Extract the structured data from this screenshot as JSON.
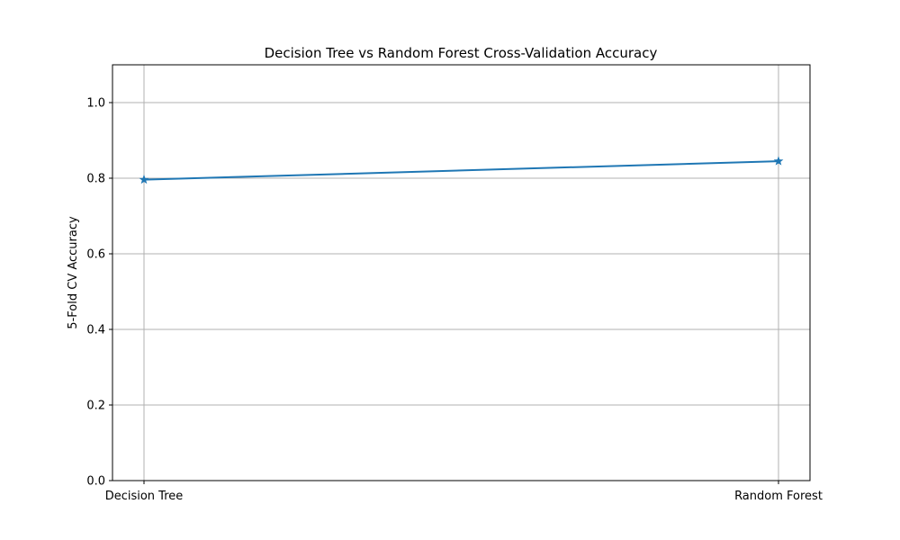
{
  "chart_data": {
    "type": "line",
    "title": "Decision Tree vs Random Forest Cross-Validation Accuracy",
    "xlabel": "",
    "ylabel": "5-Fold CV Accuracy",
    "categories": [
      "Decision Tree",
      "Random Forest"
    ],
    "series": [
      {
        "values": [
          0.796,
          0.845
        ],
        "marker": "star",
        "color": "#1f77b4"
      }
    ],
    "ylim": [
      0,
      1.1
    ],
    "yticks": [
      0.0,
      0.2,
      0.4,
      0.6,
      0.8,
      1.0
    ],
    "ytick_labels": [
      "0.0",
      "0.2",
      "0.4",
      "0.6",
      "0.8",
      "1.0"
    ],
    "grid": true,
    "grid_color": "#b0b0b0",
    "legend": "none"
  }
}
